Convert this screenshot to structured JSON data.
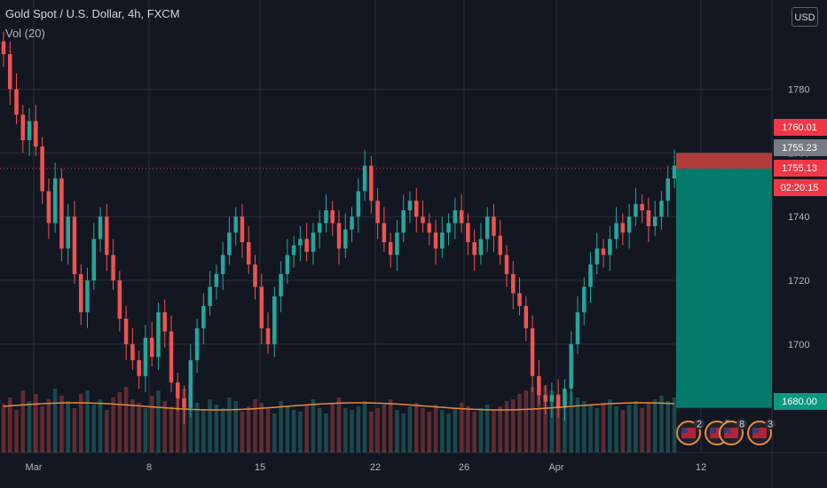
{
  "header": {
    "title": "Gold Spot / U.S. Dollar, 4h, FXCM",
    "indicator": "Vol (20)"
  },
  "currency_button": {
    "label": "USD"
  },
  "chart_data": {
    "type": "candlestick",
    "title": "Gold Spot / U.S. Dollar, 4h, FXCM",
    "xlabel": "",
    "ylabel": "",
    "x_tick_labels": [
      "Mar",
      "8",
      "15",
      "22",
      "26",
      "Apr",
      "12"
    ],
    "y_ticks": [
      1700,
      1720,
      1740,
      1760,
      1780
    ],
    "y_tick_labels": [
      "1700",
      "1720",
      "1740",
      "1760",
      "1780"
    ],
    "ylim": [
      1666,
      1808
    ],
    "grid": true,
    "colors": {
      "up": "#26a69a",
      "down": "#ef5350",
      "background": "#131722",
      "grid": "#2a2e39",
      "volume_ma": "#e68a3c"
    },
    "closes": [
      1791,
      1780,
      1772,
      1764,
      1770,
      1762,
      1748,
      1738,
      1752,
      1730,
      1740,
      1722,
      1710,
      1720,
      1733,
      1740,
      1728,
      1720,
      1708,
      1700,
      1695,
      1690,
      1702,
      1696,
      1710,
      1704,
      1688,
      1683,
      1680,
      1695,
      1705,
      1712,
      1718,
      1722,
      1728,
      1735,
      1740,
      1732,
      1725,
      1718,
      1705,
      1700,
      1715,
      1722,
      1728,
      1731,
      1733,
      1729,
      1735,
      1738,
      1742,
      1738,
      1730,
      1736,
      1740,
      1748,
      1756,
      1745,
      1738,
      1732,
      1728,
      1735,
      1742,
      1745,
      1740,
      1738,
      1735,
      1730,
      1735,
      1738,
      1742,
      1738,
      1732,
      1728,
      1733,
      1740,
      1734,
      1728,
      1722,
      1716,
      1712,
      1705,
      1690,
      1684,
      1682,
      1684,
      1680,
      1686,
      1700,
      1710,
      1718,
      1725,
      1730,
      1728,
      1733,
      1738,
      1735,
      1740,
      1744,
      1742,
      1737,
      1740,
      1745,
      1752,
      1756
    ],
    "volume": [
      55,
      62,
      48,
      70,
      58,
      66,
      52,
      60,
      72,
      64,
      58,
      50,
      66,
      70,
      54,
      60,
      48,
      62,
      68,
      74,
      60,
      56,
      50,
      64,
      70,
      58,
      52,
      66,
      72,
      60,
      56,
      48,
      60,
      54,
      50,
      62,
      58,
      46,
      52,
      60,
      56,
      50,
      44,
      58,
      52,
      48,
      46,
      54,
      60,
      50,
      44,
      56,
      62,
      50,
      48,
      52,
      58,
      46,
      50,
      54,
      60,
      48,
      44,
      52,
      56,
      50,
      46,
      54,
      48,
      44,
      50,
      56,
      52,
      46,
      50,
      54,
      48,
      52,
      58,
      60,
      66,
      70,
      74,
      80,
      76,
      70,
      66,
      72,
      68,
      62,
      58,
      54,
      50,
      56,
      60,
      52,
      48,
      54,
      58,
      50,
      56,
      60,
      64,
      58,
      62
    ],
    "price_tags": [
      {
        "label": "1760.01",
        "value": 1760.01,
        "color": "#f23645"
      },
      {
        "label": "1755.23",
        "value": 1755.23,
        "color": "#787b86"
      },
      {
        "label": "1755.13",
        "value": 1755.13,
        "color": "#f23645"
      },
      {
        "label": "02:20:15",
        "value": 1755.13,
        "color": "#f23645"
      },
      {
        "label": "1680.00",
        "value": 1680.0,
        "color": "#089981"
      }
    ],
    "position": {
      "type": "short",
      "entry": 1755.13,
      "stop": 1760.01,
      "target": 1680.0,
      "stop_color": "#c2413e",
      "target_color": "#04806f"
    },
    "events": [
      {
        "label": "2",
        "value": 2
      },
      {
        "label": "8",
        "value": 8
      },
      {
        "label": "8",
        "value": 8
      },
      {
        "label": "3",
        "value": 3
      }
    ],
    "event_icon": "us-flag-icon"
  }
}
